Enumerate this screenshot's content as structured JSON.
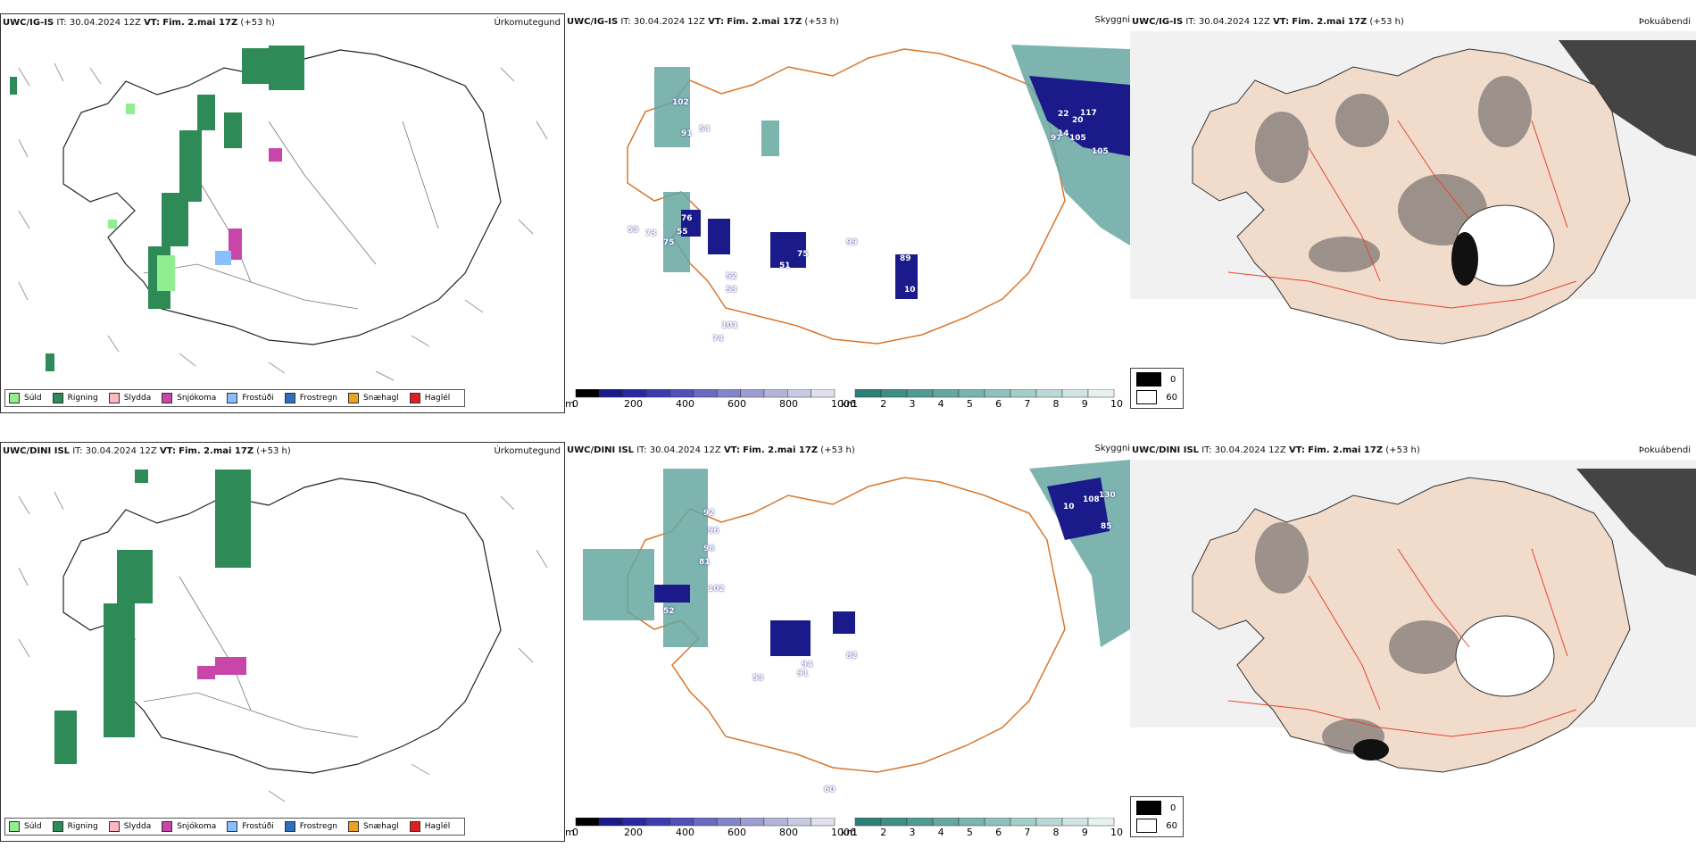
{
  "rows": [
    {
      "model": "UWC/IG-IS",
      "left": {
        "it_label": "IT:",
        "it": "30.04.2024 12Z",
        "vt_label": "VT:",
        "vt": "Fim. 2.mai 17Z",
        "lead": "(+53 h)",
        "title": "Úrkomutegund"
      },
      "middle": {
        "it_label": "IT:",
        "it": "30.04.2024 12Z",
        "vt_label": "VT:",
        "vt": "Fim. 2.mai 17Z",
        "lead": "(+53 h)",
        "title": "Skyggni",
        "labels": [
          "102",
          "91",
          "54",
          "53",
          "73",
          "75",
          "55",
          "76",
          "52",
          "53",
          "101",
          "74",
          "51",
          "75",
          "99",
          "89",
          "10",
          "117",
          "105",
          "105",
          "97",
          "20",
          "22",
          "14"
        ]
      },
      "right": {
        "it_label": "IT:",
        "it": "30.04.2024 12Z",
        "vt_label": "VT:",
        "vt": "Fim. 2.mai 17Z",
        "lead": "(+53 h)",
        "title": "Þokuábendi"
      }
    },
    {
      "model": "UWC/DINI ISL",
      "left": {
        "it_label": "IT:",
        "it": "30.04.2024 12Z",
        "vt_label": "VT:",
        "vt": "Fim. 2.mai 17Z",
        "lead": "(+53 h)",
        "title": "Úrkomutegund"
      },
      "middle": {
        "it_label": "IT:",
        "it": "30.04.2024 12Z",
        "vt_label": "VT:",
        "vt": "Fim. 2.mai 17Z",
        "lead": "(+53 h)",
        "title": "Skyggni",
        "labels": [
          "92",
          "96",
          "81",
          "96",
          "102",
          "52",
          "53",
          "94",
          "91",
          "82",
          "108",
          "130",
          "85",
          "10",
          "60"
        ]
      },
      "right": {
        "it_label": "IT:",
        "it": "30.04.2024 12Z",
        "vt_label": "VT:",
        "vt": "Fim. 2.mai 17Z",
        "lead": "(+53 h)",
        "title": "Þokuábendi"
      }
    }
  ],
  "legend": [
    {
      "label": "Súld",
      "color": "#90ee90"
    },
    {
      "label": "Rigning",
      "color": "#2e8b57"
    },
    {
      "label": "Slydda",
      "color": "#ffb6c1"
    },
    {
      "label": "Snjókoma",
      "color": "#c846a8"
    },
    {
      "label": "Frostúði",
      "color": "#87bfff"
    },
    {
      "label": "Frostregn",
      "color": "#2c6fbd"
    },
    {
      "label": "Snæhagl",
      "color": "#f0a020"
    },
    {
      "label": "Haglél",
      "color": "#e02020"
    }
  ],
  "colorbars": {
    "m_unit": "m",
    "m_ticks": [
      "0",
      "200",
      "400",
      "600",
      "800",
      "1000"
    ],
    "m_colors": [
      "#000000",
      "#1a1a8a",
      "#2a2aa0",
      "#3c3cb0",
      "#5050b8",
      "#6a6ac0",
      "#8484c8",
      "#9c9cd0",
      "#b4b4d8",
      "#cacae2",
      "#e0e0ee"
    ],
    "km_unit": "km",
    "km_ticks": [
      "1",
      "2",
      "3",
      "4",
      "5",
      "6",
      "7",
      "8",
      "9",
      "10"
    ],
    "km_colors": [
      "#2f7f79",
      "#3f8d86",
      "#529a94",
      "#66a7a1",
      "#7ab4af",
      "#8fc1bc",
      "#a4ceca",
      "#bad9d6",
      "#d0e5e3",
      "#e6f1f0"
    ]
  },
  "fog_legend": [
    {
      "label": "0",
      "color": "#000000"
    },
    {
      "label": "60",
      "color": "#ffffff"
    }
  ]
}
